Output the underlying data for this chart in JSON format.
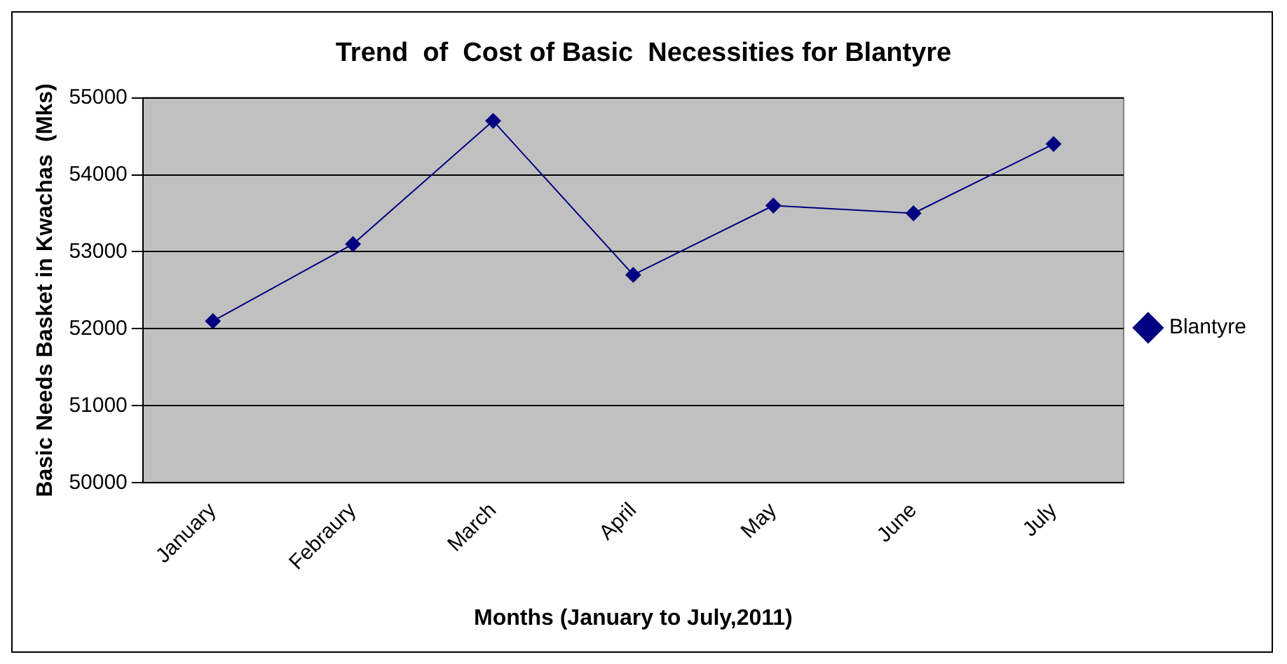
{
  "chart_data": {
    "type": "line",
    "title": "Trend  of  Cost of Basic  Necessities for Blantyre",
    "xlabel": "Months (January to July,2011)",
    "ylabel": "Basic Needs Basket in Kwachas  (Mks)",
    "categories": [
      "January",
      "Febraury",
      "March",
      "April",
      "May",
      "June",
      "July"
    ],
    "series": [
      {
        "name": "Blantyre",
        "color": "#000080",
        "values": [
          52100,
          53100,
          54700,
          52700,
          53600,
          53500,
          54400
        ]
      }
    ],
    "ylim": [
      50000,
      55000
    ],
    "yticks": [
      50000,
      51000,
      52000,
      53000,
      54000,
      55000
    ],
    "grid": "y",
    "legend": "right",
    "marker": "diamond",
    "line_style": "solid"
  }
}
